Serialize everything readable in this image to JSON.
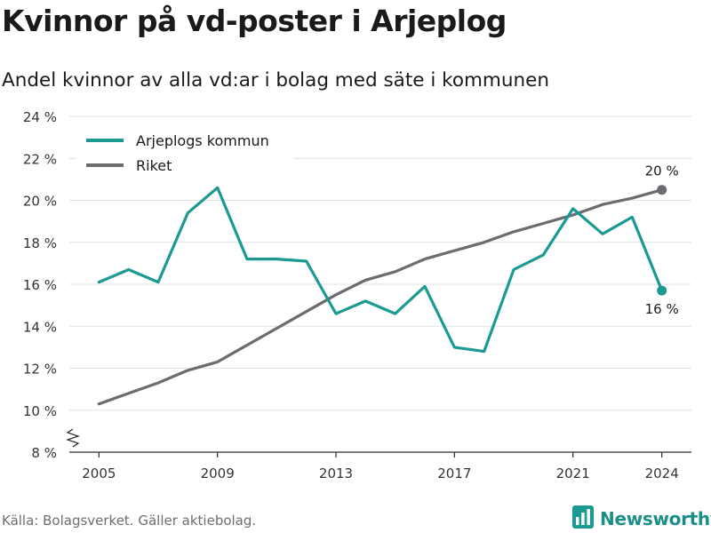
{
  "title": "Kvinnor på vd-poster i Arjeplog",
  "subtitle": "Andel kvinnor av alla vd:ar i bolag med säte i kommunen",
  "source": "Källa: Bolagsverket. Gäller aktiebolag.",
  "brand": {
    "name": "Newsworthy",
    "icon": "bar-chart-logo-icon",
    "color": "#1a9a92"
  },
  "chart_data": {
    "type": "line",
    "xlim": [
      2004,
      2025
    ],
    "ylim": [
      8,
      24
    ],
    "yticks": [
      8,
      10,
      12,
      14,
      16,
      18,
      20,
      22,
      24
    ],
    "ytick_labels": [
      "8 %",
      "10 %",
      "12 %",
      "14 %",
      "16 %",
      "18 %",
      "20 %",
      "22 %",
      "24 %"
    ],
    "xticks": [
      2005,
      2009,
      2013,
      2017,
      2021,
      2024
    ],
    "xtick_labels": [
      "2005",
      "2009",
      "2013",
      "2017",
      "2021",
      "2024"
    ],
    "grid": true,
    "axis_break": true,
    "legend_position": "top-left",
    "series": [
      {
        "name": "Arjeplogs kommun",
        "color": "#1a9a92",
        "x": [
          2005,
          2006,
          2007,
          2008,
          2009,
          2010,
          2011,
          2012,
          2013,
          2014,
          2015,
          2016,
          2017,
          2018,
          2019,
          2020,
          2021,
          2022,
          2023,
          2024
        ],
        "y": [
          16.1,
          16.7,
          16.1,
          19.4,
          20.6,
          17.2,
          17.2,
          17.1,
          14.6,
          15.2,
          14.6,
          15.9,
          13.0,
          12.8,
          16.7,
          17.4,
          19.6,
          18.4,
          19.2,
          15.7
        ],
        "end_label": "16 %"
      },
      {
        "name": "Riket",
        "color": "#6c6b70",
        "x": [
          2005,
          2006,
          2007,
          2008,
          2009,
          2010,
          2011,
          2012,
          2013,
          2014,
          2015,
          2016,
          2017,
          2018,
          2019,
          2020,
          2021,
          2022,
          2023,
          2024
        ],
        "y": [
          10.3,
          10.8,
          11.3,
          11.9,
          12.3,
          13.1,
          13.9,
          14.7,
          15.5,
          16.2,
          16.6,
          17.2,
          17.6,
          18.0,
          18.5,
          18.9,
          19.3,
          19.8,
          20.1,
          20.5
        ],
        "end_label": "20 %"
      }
    ]
  }
}
